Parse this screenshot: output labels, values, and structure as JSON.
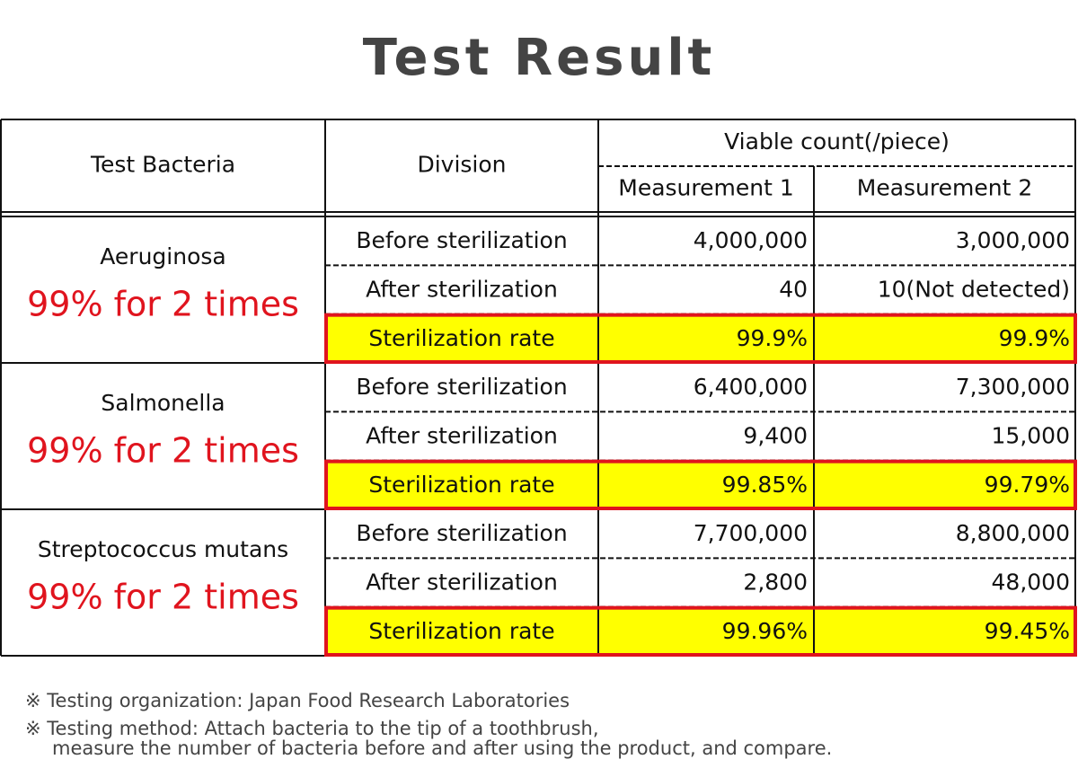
{
  "title": "Test Result",
  "table": {
    "headers": {
      "bacteria": "Test Bacteria",
      "division": "Division",
      "viable_count": "Viable count(/piece)",
      "measurements": [
        "Measurement 1",
        "Measurement 2"
      ]
    },
    "groups": [
      {
        "bacteria": "Aeruginosa",
        "note": "99% for 2 times",
        "rows": [
          [
            "Before sterilization",
            "4,000,000",
            "3,000,000"
          ],
          [
            "After sterilization",
            "40",
            "10(Not detected)"
          ],
          [
            "Sterilization rate",
            "99.9%",
            "99.9%"
          ]
        ]
      },
      {
        "bacteria": "Salmonella",
        "note": "99% for 2 times",
        "rows": [
          [
            "Before sterilization",
            "6,400,000",
            "7,300,000"
          ],
          [
            "After sterilization",
            "9,400",
            "15,000"
          ],
          [
            "Sterilization rate",
            "99.85%",
            "99.79%"
          ]
        ]
      },
      {
        "bacteria": "Streptococcus mutans",
        "note": "99% for 2 times",
        "rows": [
          [
            "Before sterilization",
            "7,700,000",
            "8,800,000"
          ],
          [
            "After sterilization",
            "2,800",
            "48,000"
          ],
          [
            "Sterilization rate",
            "99.96%",
            "99.45%"
          ]
        ]
      }
    ]
  },
  "footnotes": [
    "※  Testing organization: Japan Food Research Laboratories",
    "※  Testing method: Attach bacteria to the tip of a toothbrush,",
    "measure the number of bacteria before and after using the product, and compare."
  ]
}
